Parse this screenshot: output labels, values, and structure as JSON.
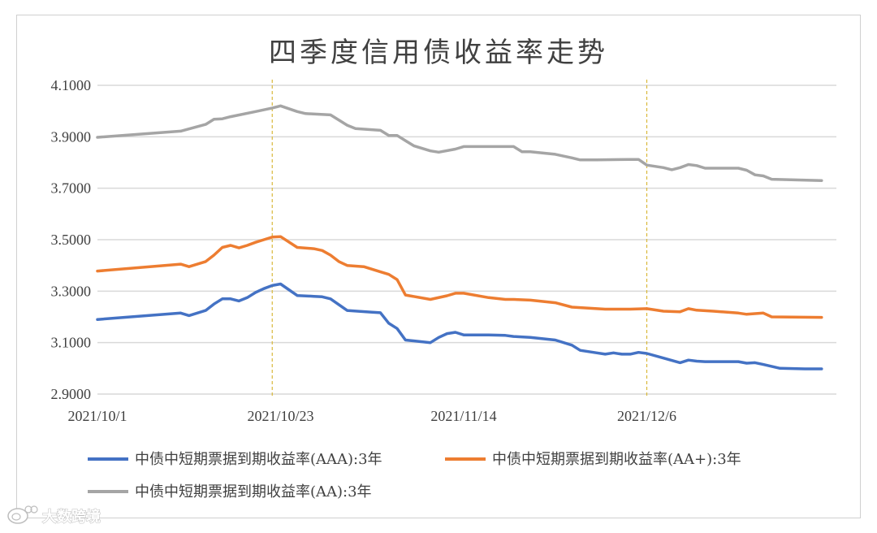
{
  "chart_data": {
    "type": "line",
    "title": "四季度信用债收益率走势",
    "ylim": [
      2.9,
      4.1
    ],
    "yticks": [
      "4.1000",
      "3.9000",
      "3.7000",
      "3.5000",
      "3.3000",
      "3.1000",
      "2.9000"
    ],
    "ytick_values": [
      4.1,
      3.9,
      3.7,
      3.5,
      3.3,
      3.1,
      2.9
    ],
    "xlim": [
      "2021/10/1",
      "2021/12/28"
    ],
    "xticks": [
      "2021/10/1",
      "2021/10/23",
      "2021/11/14",
      "2021/12/6"
    ],
    "xtick_values": [
      "2021-10-01",
      "2021-10-23",
      "2021-11-14",
      "2021-12-06"
    ],
    "vlines": [
      "2021-10-22",
      "2021-12-06"
    ],
    "grid": "horizontal",
    "legend_position": "bottom",
    "series": [
      {
        "name": "中债中短期票据到期收益率(AAA):3年",
        "color": "#4472C4",
        "points": [
          [
            "2021-10-01",
            3.19
          ],
          [
            "2021-10-11",
            3.215
          ],
          [
            "2021-10-12",
            3.205
          ],
          [
            "2021-10-14",
            3.225
          ],
          [
            "2021-10-15",
            3.25
          ],
          [
            "2021-10-16",
            3.27
          ],
          [
            "2021-10-17",
            3.27
          ],
          [
            "2021-10-18",
            3.262
          ],
          [
            "2021-10-19",
            3.275
          ],
          [
            "2021-10-20",
            3.295
          ],
          [
            "2021-10-21",
            3.31
          ],
          [
            "2021-10-22",
            3.322
          ],
          [
            "2021-10-23",
            3.328
          ],
          [
            "2021-10-25",
            3.283
          ],
          [
            "2021-10-27",
            3.28
          ],
          [
            "2021-10-28",
            3.278
          ],
          [
            "2021-10-29",
            3.27
          ],
          [
            "2021-10-31",
            3.225
          ],
          [
            "2021-11-03",
            3.218
          ],
          [
            "2021-11-04",
            3.216
          ],
          [
            "2021-11-05",
            3.175
          ],
          [
            "2021-11-06",
            3.155
          ],
          [
            "2021-11-07",
            3.11
          ],
          [
            "2021-11-10",
            3.1
          ],
          [
            "2021-11-11",
            3.12
          ],
          [
            "2021-11-12",
            3.135
          ],
          [
            "2021-11-13",
            3.14
          ],
          [
            "2021-11-14",
            3.13
          ],
          [
            "2021-11-17",
            3.13
          ],
          [
            "2021-11-19",
            3.128
          ],
          [
            "2021-11-20",
            3.124
          ],
          [
            "2021-11-22",
            3.12
          ],
          [
            "2021-11-25",
            3.11
          ],
          [
            "2021-11-27",
            3.09
          ],
          [
            "2021-11-28",
            3.07
          ],
          [
            "2021-11-30",
            3.06
          ],
          [
            "2021-12-01",
            3.055
          ],
          [
            "2021-12-02",
            3.06
          ],
          [
            "2021-12-03",
            3.055
          ],
          [
            "2021-12-04",
            3.055
          ],
          [
            "2021-12-05",
            3.062
          ],
          [
            "2021-12-06",
            3.058
          ],
          [
            "2021-12-08",
            3.04
          ],
          [
            "2021-12-10",
            3.022
          ],
          [
            "2021-12-11",
            3.032
          ],
          [
            "2021-12-12",
            3.028
          ],
          [
            "2021-12-13",
            3.026
          ],
          [
            "2021-12-17",
            3.026
          ],
          [
            "2021-12-18",
            3.02
          ],
          [
            "2021-12-19",
            3.022
          ],
          [
            "2021-12-20",
            3.015
          ],
          [
            "2021-12-22",
            3.0
          ],
          [
            "2021-12-25",
            2.998
          ],
          [
            "2021-12-27",
            2.998
          ]
        ]
      },
      {
        "name": "中债中短期票据到期收益率(AA+):3年",
        "color": "#ED7D31",
        "points": [
          [
            "2021-10-01",
            3.378
          ],
          [
            "2021-10-11",
            3.405
          ],
          [
            "2021-10-12",
            3.395
          ],
          [
            "2021-10-14",
            3.415
          ],
          [
            "2021-10-15",
            3.44
          ],
          [
            "2021-10-16",
            3.47
          ],
          [
            "2021-10-17",
            3.478
          ],
          [
            "2021-10-18",
            3.468
          ],
          [
            "2021-10-19",
            3.478
          ],
          [
            "2021-10-20",
            3.49
          ],
          [
            "2021-10-21",
            3.5
          ],
          [
            "2021-10-22",
            3.51
          ],
          [
            "2021-10-23",
            3.512
          ],
          [
            "2021-10-25",
            3.47
          ],
          [
            "2021-10-27",
            3.465
          ],
          [
            "2021-10-28",
            3.458
          ],
          [
            "2021-10-29",
            3.44
          ],
          [
            "2021-10-30",
            3.415
          ],
          [
            "2021-10-31",
            3.4
          ],
          [
            "2021-11-02",
            3.395
          ],
          [
            "2021-11-04",
            3.375
          ],
          [
            "2021-11-05",
            3.365
          ],
          [
            "2021-11-06",
            3.345
          ],
          [
            "2021-11-07",
            3.285
          ],
          [
            "2021-11-10",
            3.268
          ],
          [
            "2021-11-12",
            3.282
          ],
          [
            "2021-11-13",
            3.292
          ],
          [
            "2021-11-14",
            3.292
          ],
          [
            "2021-11-17",
            3.275
          ],
          [
            "2021-11-19",
            3.268
          ],
          [
            "2021-11-20",
            3.268
          ],
          [
            "2021-11-22",
            3.265
          ],
          [
            "2021-11-25",
            3.255
          ],
          [
            "2021-11-27",
            3.238
          ],
          [
            "2021-11-30",
            3.232
          ],
          [
            "2021-12-01",
            3.23
          ],
          [
            "2021-12-04",
            3.23
          ],
          [
            "2021-12-06",
            3.232
          ],
          [
            "2021-12-08",
            3.222
          ],
          [
            "2021-12-10",
            3.22
          ],
          [
            "2021-12-11",
            3.232
          ],
          [
            "2021-12-12",
            3.226
          ],
          [
            "2021-12-14",
            3.222
          ],
          [
            "2021-12-17",
            3.215
          ],
          [
            "2021-12-18",
            3.21
          ],
          [
            "2021-12-20",
            3.215
          ],
          [
            "2021-12-21",
            3.2
          ],
          [
            "2021-12-27",
            3.198
          ]
        ]
      },
      {
        "name": "中债中短期票据到期收益率(AA):3年",
        "color": "#A5A5A5",
        "points": [
          [
            "2021-10-01",
            3.898
          ],
          [
            "2021-10-11",
            3.922
          ],
          [
            "2021-10-14",
            3.948
          ],
          [
            "2021-10-15",
            3.968
          ],
          [
            "2021-10-16",
            3.97
          ],
          [
            "2021-10-17",
            3.978
          ],
          [
            "2021-10-20",
            3.998
          ],
          [
            "2021-10-22",
            4.012
          ],
          [
            "2021-10-23",
            4.02
          ],
          [
            "2021-10-25",
            3.998
          ],
          [
            "2021-10-26",
            3.99
          ],
          [
            "2021-10-29",
            3.985
          ],
          [
            "2021-10-30",
            3.965
          ],
          [
            "2021-10-31",
            3.945
          ],
          [
            "2021-11-01",
            3.932
          ],
          [
            "2021-11-04",
            3.925
          ],
          [
            "2021-11-05",
            3.905
          ],
          [
            "2021-11-06",
            3.905
          ],
          [
            "2021-11-07",
            3.885
          ],
          [
            "2021-11-08",
            3.865
          ],
          [
            "2021-11-10",
            3.845
          ],
          [
            "2021-11-11",
            3.84
          ],
          [
            "2021-11-13",
            3.852
          ],
          [
            "2021-11-14",
            3.862
          ],
          [
            "2021-11-20",
            3.862
          ],
          [
            "2021-11-21",
            3.842
          ],
          [
            "2021-11-22",
            3.842
          ],
          [
            "2021-11-25",
            3.832
          ],
          [
            "2021-11-27",
            3.818
          ],
          [
            "2021-11-28",
            3.81
          ],
          [
            "2021-11-30",
            3.81
          ],
          [
            "2021-12-04",
            3.812
          ],
          [
            "2021-12-05",
            3.812
          ],
          [
            "2021-12-06",
            3.79
          ],
          [
            "2021-12-08",
            3.78
          ],
          [
            "2021-12-09",
            3.772
          ],
          [
            "2021-12-10",
            3.78
          ],
          [
            "2021-12-11",
            3.792
          ],
          [
            "2021-12-12",
            3.788
          ],
          [
            "2021-12-13",
            3.778
          ],
          [
            "2021-12-17",
            3.778
          ],
          [
            "2021-12-18",
            3.77
          ],
          [
            "2021-12-19",
            3.752
          ],
          [
            "2021-12-20",
            3.748
          ],
          [
            "2021-12-21",
            3.735
          ],
          [
            "2021-12-27",
            3.73
          ]
        ]
      }
    ]
  },
  "watermark": {
    "text": "大数跨境",
    "icon": "weibo-icon"
  }
}
